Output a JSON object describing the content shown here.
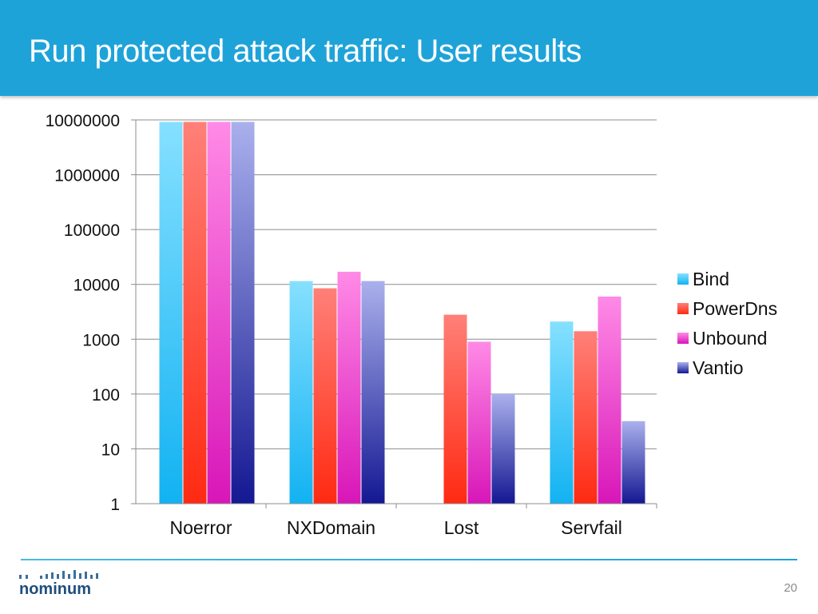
{
  "slide": {
    "title": "Run protected attack traffic: User results",
    "page_number": "20",
    "logo_text": "nominum"
  },
  "colors": {
    "header": "#1ea3d9",
    "series": [
      {
        "top": "#86e0ff",
        "bottom": "#12b2f2"
      },
      {
        "top": "#ff8078",
        "bottom": "#ff2a12"
      },
      {
        "top": "#ff8ae6",
        "bottom": "#d816b8"
      },
      {
        "top": "#aab0ec",
        "bottom": "#141892"
      }
    ]
  },
  "chart_data": {
    "type": "bar",
    "y_scale": "log",
    "ylim": [
      1,
      10000000
    ],
    "y_ticks": [
      "1",
      "10",
      "100",
      "1000",
      "10000",
      "100000",
      "1000000",
      "10000000"
    ],
    "grid": true,
    "legend_position": "right",
    "categories": [
      "Noerror",
      "NXDomain",
      "Lost",
      "Servfail"
    ],
    "series": [
      {
        "name": "Bind",
        "values": [
          9200000,
          11500,
          1,
          2100
        ]
      },
      {
        "name": "PowerDns",
        "values": [
          9200000,
          8500,
          2800,
          1400
        ]
      },
      {
        "name": "Unbound",
        "values": [
          9200000,
          17000,
          900,
          6000
        ]
      },
      {
        "name": "Vantio",
        "values": [
          9200000,
          11500,
          100,
          32
        ]
      }
    ]
  }
}
